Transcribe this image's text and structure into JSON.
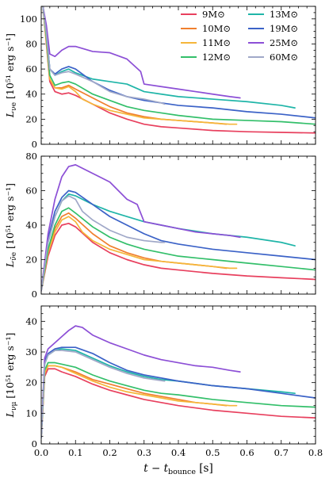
{
  "chart_data": {
    "type": "line",
    "x_label": "t − t",
    "x_label_sub": "bounce",
    "x_label_unit": " [s]",
    "xlim": [
      0.0,
      0.8
    ],
    "x_ticks": [
      "0.0",
      "0.1",
      "0.2",
      "0.3",
      "0.4",
      "0.5",
      "0.6",
      "0.7",
      "0.8"
    ],
    "x_tick_values": [
      0.0,
      0.1,
      0.2,
      0.3,
      0.4,
      0.5,
      0.6,
      0.7,
      0.8
    ],
    "colors": {
      "9M": "#e8405e",
      "10M": "#f07f2e",
      "11M": "#f5b63a",
      "12M": "#33bf6a",
      "13M": "#1fb5a8",
      "19M": "#3b62c7",
      "25M": "#8c4fd6",
      "60M": "#a0a8c8"
    },
    "legend": {
      "placement": "top-right",
      "entries": [
        {
          "key": "9M",
          "label": "9M⊙"
        },
        {
          "key": "10M",
          "label": "10M⊙"
        },
        {
          "key": "11M",
          "label": "11M⊙"
        },
        {
          "key": "12M",
          "label": "12M⊙"
        },
        {
          "key": "13M",
          "label": "13M⊙"
        },
        {
          "key": "19M",
          "label": "19M⊙"
        },
        {
          "key": "25M",
          "label": "25M⊙"
        },
        {
          "key": "60M",
          "label": "60M⊙"
        }
      ]
    },
    "panels": [
      {
        "ylabel_main": "L",
        "ylabel_sub": "νe",
        "ylabel_unit": " [10⁵¹ erg s⁻¹]",
        "ylim": [
          0,
          110
        ],
        "y_ticks": [
          0,
          20,
          40,
          60,
          80,
          100
        ],
        "series": [
          {
            "key": "9M",
            "x": [
              0.005,
              0.015,
              0.025,
              0.04,
              0.06,
              0.08,
              0.1,
              0.15,
              0.2,
              0.25,
              0.3,
              0.35,
              0.4,
              0.5,
              0.6,
              0.7,
              0.8
            ],
            "y": [
              110,
              80,
              50,
              42,
              40,
              41,
              39,
              32,
              25,
              20,
              16,
              14,
              13,
              11,
              10,
              9.5,
              9
            ]
          },
          {
            "key": "10M",
            "x": [
              0.005,
              0.015,
              0.025,
              0.04,
              0.06,
              0.08,
              0.1,
              0.15,
              0.2,
              0.25,
              0.3,
              0.35,
              0.4,
              0.45,
              0.5,
              0.54
            ],
            "y": [
              110,
              82,
              52,
              45,
              45,
              47,
              44,
              37,
              30,
              25,
              22,
              20,
              19,
              18,
              17,
              16
            ]
          },
          {
            "key": "11M",
            "x": [
              0.005,
              0.015,
              0.025,
              0.04,
              0.06,
              0.08,
              0.1,
              0.12,
              0.15,
              0.2,
              0.25,
              0.3,
              0.35,
              0.4,
              0.45,
              0.5,
              0.55,
              0.57
            ],
            "y": [
              110,
              82,
              52,
              45,
              44,
              46,
              42,
              36,
              32,
              27,
              24,
              21,
              20,
              19,
              18,
              17,
              16,
              16
            ]
          },
          {
            "key": "12M",
            "x": [
              0.005,
              0.015,
              0.025,
              0.04,
              0.06,
              0.08,
              0.1,
              0.15,
              0.2,
              0.25,
              0.3,
              0.35,
              0.4,
              0.5,
              0.6,
              0.7,
              0.8
            ],
            "y": [
              110,
              85,
              55,
              47,
              49,
              50,
              48,
              40,
              35,
              30,
              27,
              25,
              23,
              20,
              19,
              18,
              16
            ]
          },
          {
            "key": "13M",
            "x": [
              0.005,
              0.015,
              0.025,
              0.04,
              0.06,
              0.08,
              0.1,
              0.15,
              0.2,
              0.25,
              0.3,
              0.35,
              0.4,
              0.5,
              0.6,
              0.7,
              0.74
            ],
            "y": [
              110,
              88,
              60,
              55,
              58,
              60,
              57,
              52,
              50,
              48,
              42,
              40,
              38,
              36,
              34,
              31,
              29
            ]
          },
          {
            "key": "19M",
            "x": [
              0.005,
              0.015,
              0.025,
              0.04,
              0.06,
              0.08,
              0.1,
              0.15,
              0.2,
              0.25,
              0.3,
              0.35,
              0.4,
              0.5,
              0.6,
              0.7,
              0.8
            ],
            "y": [
              110,
              90,
              60,
              56,
              60,
              62,
              60,
              50,
              43,
              38,
              35,
              33,
              31,
              29,
              26,
              24,
              21
            ]
          },
          {
            "key": "25M",
            "x": [
              0.005,
              0.015,
              0.025,
              0.04,
              0.06,
              0.08,
              0.1,
              0.15,
              0.2,
              0.25,
              0.29,
              0.3,
              0.35,
              0.4,
              0.45,
              0.5,
              0.55,
              0.58
            ],
            "y": [
              110,
              95,
              72,
              70,
              75,
              78,
              78,
              74,
              73,
              68,
              58,
              48,
              46,
              44,
              42,
              40,
              38,
              37
            ]
          },
          {
            "key": "60M",
            "x": [
              0.005,
              0.015,
              0.025,
              0.04,
              0.06,
              0.08,
              0.1,
              0.15,
              0.2,
              0.25,
              0.3,
              0.35,
              0.36
            ],
            "y": [
              110,
              88,
              60,
              55,
              57,
              58,
              56,
              50,
              42,
              38,
              36,
              33,
              32
            ]
          }
        ]
      },
      {
        "ylabel_main": "L",
        "ylabel_sub": "ν̄e",
        "ylabel_unit": " [10⁵¹ erg s⁻¹]",
        "ylim": [
          0,
          80
        ],
        "y_ticks": [
          0,
          20,
          40,
          60,
          80
        ],
        "series": [
          {
            "key": "9M",
            "x": [
              0.0,
              0.02,
              0.04,
              0.06,
              0.08,
              0.1,
              0.15,
              0.2,
              0.25,
              0.3,
              0.35,
              0.4,
              0.5,
              0.6,
              0.7,
              0.8
            ],
            "y": [
              2,
              22,
              34,
              40,
              41,
              39,
              30,
              24,
              20,
              17,
              15,
              14,
              12,
              10.5,
              9.5,
              8.5
            ]
          },
          {
            "key": "10M",
            "x": [
              0.0,
              0.02,
              0.04,
              0.06,
              0.08,
              0.1,
              0.15,
              0.2,
              0.25,
              0.3,
              0.35,
              0.4,
              0.45,
              0.5,
              0.54
            ],
            "y": [
              2,
              25,
              38,
              45,
              47,
              44,
              35,
              28,
              24,
              21,
              19,
              18,
              17,
              16,
              15
            ]
          },
          {
            "key": "11M",
            "x": [
              0.0,
              0.02,
              0.04,
              0.06,
              0.08,
              0.1,
              0.12,
              0.15,
              0.2,
              0.25,
              0.3,
              0.35,
              0.4,
              0.45,
              0.5,
              0.55,
              0.57
            ],
            "y": [
              2,
              24,
              36,
              43,
              45,
              42,
              36,
              31,
              26,
              23,
              20,
              19,
              18,
              17,
              16,
              15,
              15
            ]
          },
          {
            "key": "12M",
            "x": [
              0.0,
              0.02,
              0.04,
              0.06,
              0.08,
              0.1,
              0.15,
              0.2,
              0.25,
              0.3,
              0.35,
              0.4,
              0.5,
              0.6,
              0.7,
              0.8
            ],
            "y": [
              2,
              26,
              40,
              48,
              50,
              47,
              39,
              33,
              29,
              26,
              24,
              22,
              20,
              18,
              16,
              14
            ]
          },
          {
            "key": "13M",
            "x": [
              0.0,
              0.02,
              0.04,
              0.06,
              0.08,
              0.1,
              0.15,
              0.2,
              0.25,
              0.3,
              0.35,
              0.4,
              0.5,
              0.6,
              0.7,
              0.74
            ],
            "y": [
              2,
              30,
              45,
              54,
              58,
              57,
              52,
              48,
              45,
              42,
              40,
              38,
              35,
              33,
              30,
              28
            ]
          },
          {
            "key": "19M",
            "x": [
              0.0,
              0.02,
              0.04,
              0.06,
              0.08,
              0.1,
              0.15,
              0.2,
              0.25,
              0.3,
              0.35,
              0.4,
              0.5,
              0.6,
              0.7,
              0.8
            ],
            "y": [
              2,
              32,
              48,
              56,
              60,
              59,
              52,
              45,
              40,
              35,
              31,
              29,
              26,
              24,
              22,
              20
            ]
          },
          {
            "key": "25M",
            "x": [
              0.0,
              0.02,
              0.04,
              0.06,
              0.08,
              0.1,
              0.15,
              0.2,
              0.25,
              0.28,
              0.3,
              0.35,
              0.4,
              0.45,
              0.5,
              0.55,
              0.58
            ],
            "y": [
              2,
              35,
              55,
              68,
              74,
              75,
              70,
              65,
              55,
              52,
              42,
              40,
              38,
              36,
              35,
              34,
              33
            ]
          },
          {
            "key": "60M",
            "x": [
              0.0,
              0.02,
              0.04,
              0.06,
              0.08,
              0.1,
              0.12,
              0.15,
              0.2,
              0.25,
              0.3,
              0.35,
              0.36
            ],
            "y": [
              2,
              30,
              45,
              54,
              57,
              55,
              48,
              43,
              37,
              33,
              31,
              30,
              30
            ]
          }
        ]
      },
      {
        "ylabel_main": "L",
        "ylabel_sub": "νμ",
        "ylabel_unit": " [10⁵¹ erg s⁻¹]",
        "ylim": [
          0,
          45
        ],
        "y_ticks": [
          0,
          10,
          20,
          30,
          40
        ],
        "series": [
          {
            "key": "9M",
            "x": [
              0.0,
              0.01,
              0.02,
              0.04,
              0.06,
              0.1,
              0.15,
              0.2,
              0.25,
              0.3,
              0.35,
              0.4,
              0.5,
              0.6,
              0.7,
              0.8
            ],
            "y": [
              2,
              22,
              24.5,
              24.5,
              23.5,
              22,
              19.5,
              17.5,
              16,
              14.5,
              13.5,
              12.5,
              11,
              10,
              9,
              8.5
            ]
          },
          {
            "key": "10M",
            "x": [
              0.0,
              0.01,
              0.02,
              0.04,
              0.06,
              0.1,
              0.15,
              0.2,
              0.25,
              0.3,
              0.35,
              0.4,
              0.45,
              0.5,
              0.54
            ],
            "y": [
              2,
              23,
              25.5,
              25.5,
              25,
              23.5,
              21,
              19.5,
              18,
              16.5,
              15.5,
              14.5,
              13.5,
              13,
              12.5
            ]
          },
          {
            "key": "11M",
            "x": [
              0.0,
              0.01,
              0.02,
              0.04,
              0.06,
              0.1,
              0.15,
              0.2,
              0.25,
              0.3,
              0.35,
              0.4,
              0.45,
              0.5,
              0.55,
              0.57
            ],
            "y": [
              2,
              23,
              25.5,
              25.5,
              25,
              23,
              20.5,
              18.5,
              17,
              16,
              15,
              14,
              13.5,
              13,
              12.5,
              12.5
            ]
          },
          {
            "key": "12M",
            "x": [
              0.0,
              0.01,
              0.02,
              0.04,
              0.06,
              0.1,
              0.15,
              0.2,
              0.25,
              0.3,
              0.35,
              0.4,
              0.5,
              0.6,
              0.7,
              0.8
            ],
            "y": [
              2,
              24,
              26.5,
              26.5,
              26,
              25,
              22.5,
              20.5,
              19,
              17.5,
              16.5,
              16,
              14.5,
              13.5,
              12.5,
              12
            ]
          },
          {
            "key": "13M",
            "x": [
              0.0,
              0.01,
              0.02,
              0.04,
              0.06,
              0.1,
              0.15,
              0.2,
              0.25,
              0.3,
              0.35,
              0.4,
              0.5,
              0.6,
              0.7,
              0.74
            ],
            "y": [
              2,
              26,
              29,
              30.5,
              31,
              30.5,
              28,
              25.5,
              23.5,
              22,
              21,
              20.5,
              19,
              18,
              17,
              16.5
            ]
          },
          {
            "key": "19M",
            "x": [
              0.0,
              0.01,
              0.02,
              0.04,
              0.06,
              0.1,
              0.15,
              0.2,
              0.25,
              0.3,
              0.35,
              0.4,
              0.5,
              0.6,
              0.7,
              0.8
            ],
            "y": [
              2,
              27,
              29.5,
              31,
              31.5,
              31.5,
              29.5,
              26.5,
              24,
              22.5,
              21.5,
              20.5,
              19,
              18,
              16.5,
              15
            ]
          },
          {
            "key": "25M",
            "x": [
              0.0,
              0.01,
              0.02,
              0.04,
              0.06,
              0.08,
              0.1,
              0.12,
              0.15,
              0.2,
              0.25,
              0.3,
              0.35,
              0.4,
              0.45,
              0.5,
              0.55,
              0.58
            ],
            "y": [
              2,
              28,
              31,
              33,
              35,
              37,
              38.5,
              38,
              35.5,
              33,
              31,
              29,
              27.5,
              26.5,
              25.5,
              25,
              24,
              23.5
            ]
          },
          {
            "key": "60M",
            "x": [
              0.0,
              0.01,
              0.02,
              0.04,
              0.06,
              0.1,
              0.15,
              0.2,
              0.25,
              0.3,
              0.36
            ],
            "y": [
              2,
              26,
              29,
              30.5,
              30.5,
              30,
              27.5,
              25,
              23,
              21.5,
              20.5
            ]
          }
        ]
      }
    ]
  }
}
